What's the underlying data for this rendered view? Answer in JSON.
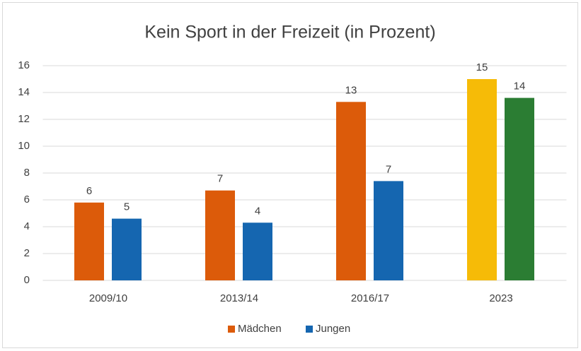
{
  "chart_data": {
    "type": "bar",
    "title": "Kein Sport in der Freizeit (in Prozent)",
    "categories": [
      "2009/10",
      "2013/14",
      "2016/17",
      "2023"
    ],
    "series": [
      {
        "name": "Mädchen",
        "color": "#dc5b0a",
        "colors": [
          "#dc5b0a",
          "#dc5b0a",
          "#dc5b0a",
          "#f6bb07"
        ],
        "values": [
          5.8,
          6.7,
          13.3,
          15.0
        ],
        "value_labels": [
          "6",
          "7",
          "13",
          "15"
        ]
      },
      {
        "name": "Jungen",
        "color": "#1566b0",
        "colors": [
          "#1566b0",
          "#1566b0",
          "#1566b0",
          "#2b7d33"
        ],
        "values": [
          4.6,
          4.3,
          7.4,
          13.6
        ],
        "value_labels": [
          "5",
          "4",
          "7",
          "14"
        ]
      }
    ],
    "ylim": [
      0,
      16
    ],
    "yticks": [
      0,
      2,
      4,
      6,
      8,
      10,
      12,
      14,
      16
    ],
    "grid": true,
    "legend": "bottom"
  }
}
